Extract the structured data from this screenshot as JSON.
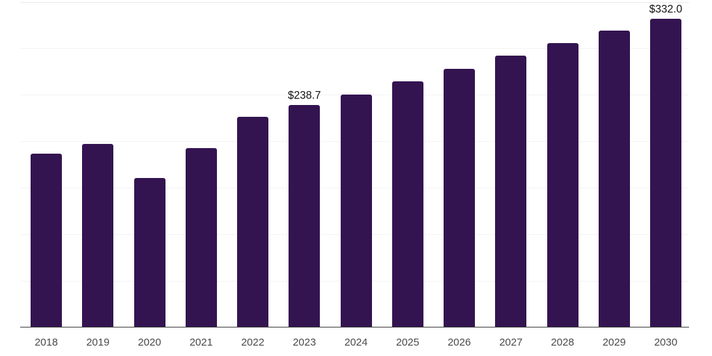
{
  "chart_data": {
    "type": "bar",
    "title": "",
    "xlabel": "",
    "ylabel": "",
    "categories": [
      "2018",
      "2019",
      "2020",
      "2021",
      "2022",
      "2023",
      "2024",
      "2025",
      "2026",
      "2027",
      "2028",
      "2029",
      "2030"
    ],
    "values": [
      186.7,
      196.9,
      160.6,
      192.9,
      226.6,
      238.7,
      250.5,
      264.4,
      278.0,
      292.2,
      305.4,
      319.0,
      332.0
    ],
    "data_labels": [
      {
        "category": "2023",
        "text": "$238.7"
      },
      {
        "category": "2030",
        "text": "$332.0"
      }
    ],
    "ylim": [
      0,
      350
    ],
    "gridline_step": 50,
    "grid": true,
    "legend_position": "none",
    "y_axis_tick_labels_visible": false
  },
  "style": {
    "bar_color": "#331450",
    "axis_line_color": "#404040",
    "gridline_color": "#f3f3f3",
    "top_gridline_color": "#e9e9e9",
    "tick_label_color": "#4a4a4a",
    "data_label_color": "#111111",
    "background": "#ffffff"
  }
}
